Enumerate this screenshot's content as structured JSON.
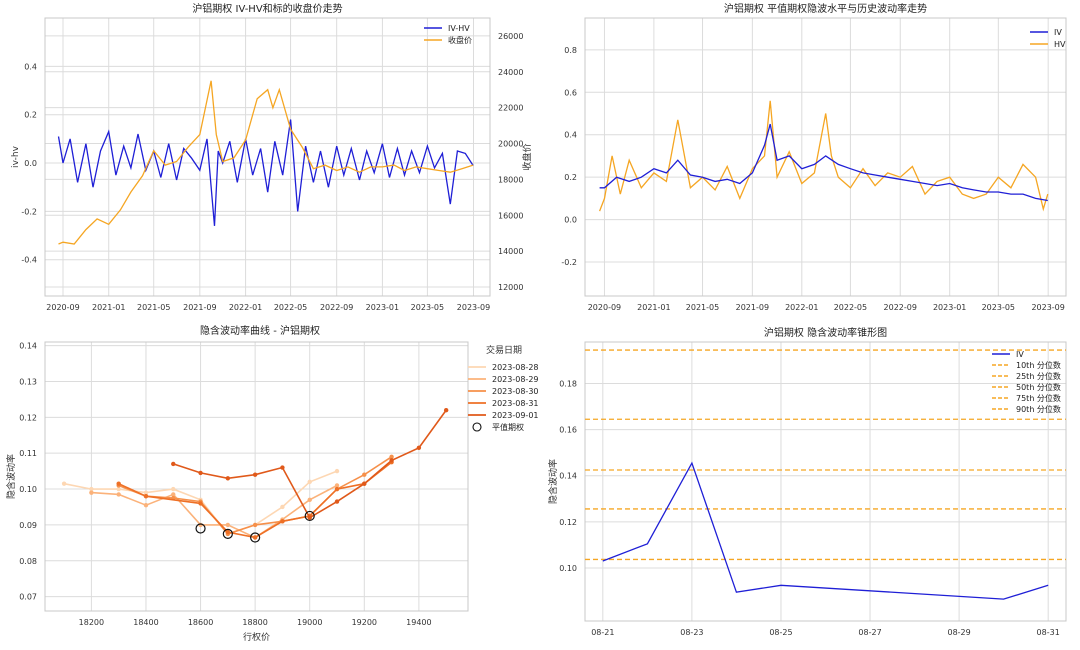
{
  "chart_data": [
    {
      "type": "line",
      "title": "沪铝期权 IV-HV和标的收盘价走势",
      "ylabel": "iv-hv",
      "y2label": "收盘价",
      "xticks": [
        "2020-09",
        "2021-01",
        "2021-05",
        "2021-09",
        "2022-01",
        "2022-05",
        "2022-09",
        "2023-01",
        "2023-05",
        "2023-09"
      ],
      "xlim": [
        "2020-07-15",
        "2023-10-15"
      ],
      "ylim": [
        -0.55,
        0.6
      ],
      "yticks": [
        -0.4,
        -0.2,
        0.0,
        0.2,
        0.4
      ],
      "y2lim": [
        11500,
        27000
      ],
      "y2ticks": [
        12000,
        14000,
        16000,
        18000,
        20000,
        22000,
        24000,
        26000
      ],
      "legend_position": "top-right",
      "grid": true,
      "series": [
        {
          "name": "IV-HV",
          "color": "#1f1fd6",
          "axis": "left",
          "x": [
            "2020-08-20",
            "2020-09-01",
            "2020-09-20",
            "2020-10-10",
            "2020-11-01",
            "2020-11-20",
            "2020-12-10",
            "2021-01-01",
            "2021-01-20",
            "2021-02-10",
            "2021-03-01",
            "2021-03-20",
            "2021-04-10",
            "2021-05-01",
            "2021-05-20",
            "2021-06-10",
            "2021-07-01",
            "2021-07-20",
            "2021-08-10",
            "2021-09-01",
            "2021-09-20",
            "2021-10-10",
            "2021-10-20",
            "2021-11-01",
            "2021-11-20",
            "2021-12-10",
            "2022-01-01",
            "2022-01-20",
            "2022-02-10",
            "2022-03-01",
            "2022-03-20",
            "2022-04-10",
            "2022-05-01",
            "2022-05-20",
            "2022-06-10",
            "2022-07-01",
            "2022-07-20",
            "2022-08-10",
            "2022-09-01",
            "2022-09-20",
            "2022-10-10",
            "2022-11-01",
            "2022-11-20",
            "2022-12-10",
            "2023-01-01",
            "2023-01-20",
            "2023-02-10",
            "2023-03-01",
            "2023-03-20",
            "2023-04-10",
            "2023-05-01",
            "2023-05-20",
            "2023-06-10",
            "2023-07-01",
            "2023-07-20",
            "2023-08-10",
            "2023-08-31"
          ],
          "y": [
            0.11,
            0.0,
            0.1,
            -0.08,
            0.08,
            -0.1,
            0.05,
            0.13,
            -0.05,
            0.07,
            -0.02,
            0.12,
            -0.03,
            0.05,
            -0.06,
            0.08,
            -0.07,
            0.06,
            0.02,
            -0.03,
            0.1,
            -0.26,
            0.05,
            0.0,
            0.09,
            -0.08,
            0.1,
            -0.05,
            0.06,
            -0.12,
            0.09,
            -0.05,
            0.18,
            -0.2,
            0.07,
            -0.08,
            0.05,
            -0.1,
            0.07,
            -0.05,
            0.06,
            -0.07,
            0.05,
            -0.04,
            0.08,
            -0.06,
            0.06,
            -0.05,
            0.05,
            -0.04,
            0.07,
            -0.02,
            0.04,
            -0.17,
            0.05,
            0.04,
            -0.01
          ]
        },
        {
          "name": "收盘价",
          "color": "#f5a623",
          "axis": "right",
          "x": [
            "2020-08-20",
            "2020-09-01",
            "2020-10-01",
            "2020-11-01",
            "2020-12-01",
            "2021-01-01",
            "2021-02-01",
            "2021-03-01",
            "2021-04-01",
            "2021-05-01",
            "2021-06-01",
            "2021-07-01",
            "2021-08-01",
            "2021-09-01",
            "2021-10-01",
            "2021-10-15",
            "2021-11-01",
            "2021-12-01",
            "2022-01-01",
            "2022-02-01",
            "2022-03-01",
            "2022-03-15",
            "2022-04-01",
            "2022-05-01",
            "2022-06-01",
            "2022-07-01",
            "2022-08-01",
            "2022-09-01",
            "2022-10-01",
            "2022-11-01",
            "2022-12-01",
            "2023-01-01",
            "2023-02-01",
            "2023-03-01",
            "2023-04-01",
            "2023-05-01",
            "2023-06-01",
            "2023-07-01",
            "2023-08-01",
            "2023-08-31"
          ],
          "y": [
            14400,
            14500,
            14400,
            15200,
            15800,
            15500,
            16300,
            17300,
            18200,
            19600,
            18800,
            19000,
            19800,
            20500,
            23500,
            20500,
            19000,
            19200,
            20200,
            22500,
            23000,
            22000,
            23000,
            20800,
            19800,
            18600,
            18800,
            18500,
            18700,
            18400,
            18700,
            18700,
            18800,
            18500,
            18700,
            18600,
            18500,
            18400,
            18600,
            18800
          ]
        }
      ]
    },
    {
      "type": "line",
      "title": "沪铝期权 平值期权隐波水平与历史波动率走势",
      "xticks": [
        "2020-09",
        "2021-01",
        "2021-05",
        "2021-09",
        "2022-01",
        "2022-05",
        "2022-09",
        "2023-01",
        "2023-05",
        "2023-09"
      ],
      "xlim": [
        "2020-07-15",
        "2023-10-15"
      ],
      "ylim": [
        -0.36,
        0.95
      ],
      "yticks": [
        -0.2,
        0.0,
        0.2,
        0.4,
        0.6,
        0.8
      ],
      "legend_position": "top-right",
      "grid": true,
      "series": [
        {
          "name": "IV",
          "color": "#1f1fd6",
          "x": [
            "2020-08-20",
            "2020-09-01",
            "2020-10-01",
            "2020-11-01",
            "2020-12-01",
            "2021-01-01",
            "2021-02-01",
            "2021-03-01",
            "2021-04-01",
            "2021-05-01",
            "2021-06-01",
            "2021-07-01",
            "2021-08-01",
            "2021-09-01",
            "2021-10-01",
            "2021-10-15",
            "2021-11-01",
            "2021-12-01",
            "2022-01-01",
            "2022-02-01",
            "2022-03-01",
            "2022-04-01",
            "2022-05-01",
            "2022-06-01",
            "2022-07-01",
            "2022-08-01",
            "2022-09-01",
            "2022-10-01",
            "2022-11-01",
            "2022-12-01",
            "2023-01-01",
            "2023-02-01",
            "2023-03-01",
            "2023-04-01",
            "2023-05-01",
            "2023-06-01",
            "2023-07-01",
            "2023-08-01",
            "2023-08-31"
          ],
          "y": [
            0.15,
            0.15,
            0.2,
            0.18,
            0.2,
            0.24,
            0.22,
            0.28,
            0.21,
            0.2,
            0.18,
            0.19,
            0.17,
            0.22,
            0.35,
            0.45,
            0.28,
            0.3,
            0.24,
            0.26,
            0.3,
            0.26,
            0.24,
            0.22,
            0.21,
            0.2,
            0.19,
            0.18,
            0.17,
            0.16,
            0.17,
            0.15,
            0.14,
            0.13,
            0.13,
            0.12,
            0.12,
            0.1,
            0.09
          ]
        },
        {
          "name": "HV",
          "color": "#f5a623",
          "x": [
            "2020-08-20",
            "2020-09-01",
            "2020-09-20",
            "2020-10-10",
            "2020-11-01",
            "2020-12-01",
            "2021-01-01",
            "2021-02-01",
            "2021-03-01",
            "2021-04-01",
            "2021-05-01",
            "2021-06-01",
            "2021-07-01",
            "2021-08-01",
            "2021-09-01",
            "2021-10-01",
            "2021-10-15",
            "2021-11-01",
            "2021-12-01",
            "2022-01-01",
            "2022-02-01",
            "2022-03-01",
            "2022-03-15",
            "2022-04-01",
            "2022-05-01",
            "2022-06-01",
            "2022-07-01",
            "2022-08-01",
            "2022-09-01",
            "2022-10-01",
            "2022-11-01",
            "2022-12-01",
            "2023-01-01",
            "2023-02-01",
            "2023-03-01",
            "2023-04-01",
            "2023-05-01",
            "2023-06-01",
            "2023-07-01",
            "2023-08-01",
            "2023-08-20",
            "2023-08-31"
          ],
          "y": [
            0.04,
            0.1,
            0.3,
            0.12,
            0.28,
            0.15,
            0.22,
            0.18,
            0.47,
            0.15,
            0.2,
            0.14,
            0.25,
            0.1,
            0.24,
            0.3,
            0.56,
            0.2,
            0.32,
            0.17,
            0.22,
            0.5,
            0.3,
            0.2,
            0.15,
            0.24,
            0.16,
            0.22,
            0.2,
            0.25,
            0.12,
            0.18,
            0.2,
            0.12,
            0.1,
            0.12,
            0.2,
            0.15,
            0.26,
            0.2,
            0.05,
            0.12
          ]
        }
      ]
    },
    {
      "type": "line",
      "title": "隐含波动率曲线 - 沪铝期权",
      "xlabel": "行权价",
      "ylabel": "隐含波动率",
      "xlim": [
        18030,
        19580
      ],
      "ylim": [
        0.066,
        0.141
      ],
      "xticks": [
        18200,
        18400,
        18600,
        18800,
        19000,
        19200,
        19400
      ],
      "yticks": [
        0.07,
        0.08,
        0.09,
        0.1,
        0.11,
        0.12,
        0.13,
        0.14
      ],
      "legend_title": "交易日期",
      "legend_position": "top-right",
      "grid": true,
      "series": [
        {
          "name": "2023-08-28",
          "color": "#fdd7b3",
          "x": [
            18100,
            18200,
            18300,
            18400,
            18500,
            18600,
            18700,
            18800,
            18900,
            19000,
            19100
          ],
          "y": [
            0.1015,
            0.1,
            0.1,
            0.099,
            0.1,
            0.097,
            0.0875,
            0.09,
            0.095,
            0.102,
            0.105
          ]
        },
        {
          "name": "2023-08-29",
          "color": "#fbb27a",
          "x": [
            18200,
            18300,
            18400,
            18500,
            18600,
            18700,
            18800,
            18900,
            19000,
            19100
          ],
          "y": [
            0.099,
            0.0985,
            0.0955,
            0.0985,
            0.09,
            0.09,
            0.0865,
            0.0915,
            0.097,
            0.101
          ]
        },
        {
          "name": "2023-08-30",
          "color": "#f6904a",
          "x": [
            18300,
            18400,
            18500,
            18600,
            18700,
            18800,
            18900,
            19000,
            19100,
            19200,
            19300
          ],
          "y": [
            0.101,
            0.098,
            0.0975,
            0.0965,
            0.0875,
            0.09,
            0.091,
            0.0925,
            0.1,
            0.104,
            0.109
          ]
        },
        {
          "name": "2023-08-31",
          "color": "#ee7026",
          "x": [
            18300,
            18400,
            18600,
            18700,
            18800,
            18900,
            19000,
            19100,
            19200,
            19300
          ],
          "y": [
            0.1015,
            0.098,
            0.096,
            0.088,
            0.0865,
            0.091,
            0.0925,
            0.1,
            0.1015,
            0.1075
          ]
        },
        {
          "name": "2023-09-01",
          "color": "#e0591a",
          "x": [
            18500,
            18600,
            18700,
            18800,
            18900,
            19000,
            19100,
            19200,
            19300,
            19400,
            19500
          ],
          "y": [
            0.107,
            0.1045,
            0.103,
            0.104,
            0.106,
            0.092,
            0.0965,
            0.1015,
            0.108,
            0.1115,
            0.122
          ]
        }
      ],
      "atm_label": "平值期权",
      "atm_points": {
        "x": [
          18600,
          18700,
          18800,
          19000
        ],
        "y": [
          0.089,
          0.0875,
          0.0865,
          0.0925
        ]
      }
    },
    {
      "type": "line",
      "title": "沪铝期权 隐含波动率锥形图",
      "ylabel": "隐含波动率",
      "xlim": [
        -0.4,
        10.4
      ],
      "ylim": [
        0.077,
        0.198
      ],
      "xticks": [
        "08-21",
        "08-23",
        "08-25",
        "08-27",
        "08-29",
        "08-31"
      ],
      "yticks": [
        0.1,
        0.12,
        0.14,
        0.16,
        0.18
      ],
      "legend_position": "top-right",
      "grid": true,
      "series": [
        {
          "name": "IV",
          "color": "#1f1fd6",
          "x": [
            0,
            1,
            2,
            3,
            4,
            9,
            10
          ],
          "y": [
            0.103,
            0.1105,
            0.1455,
            0.0895,
            0.0925,
            0.0865,
            0.0925
          ]
        }
      ],
      "percentiles": [
        {
          "name": "10th 分位数",
          "value": 0.1037,
          "color": "#f5a623"
        },
        {
          "name": "25th 分位数",
          "value": 0.1256,
          "color": "#f5a623"
        },
        {
          "name": "50th 分位数",
          "value": 0.1425,
          "color": "#f5a623"
        },
        {
          "name": "75th 分位数",
          "value": 0.1645,
          "color": "#f5a623"
        },
        {
          "name": "90th 分位数",
          "value": 0.1945,
          "color": "#f5a623"
        }
      ]
    }
  ]
}
